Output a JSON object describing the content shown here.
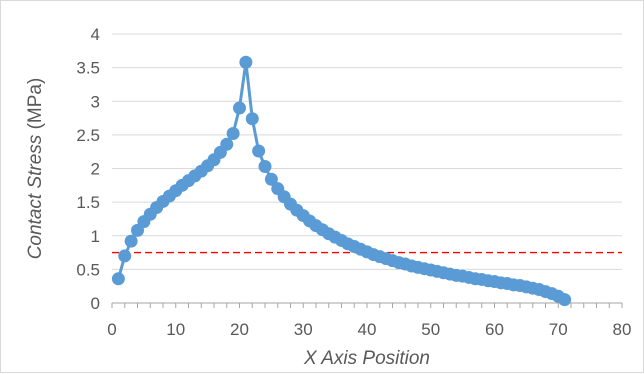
{
  "chart_data": {
    "type": "line",
    "title": "",
    "xlabel": "X Axis Position",
    "ylabel_italic": "Contact Stress",
    "ylabel_unit": " (MPa)",
    "xlim": [
      0,
      80
    ],
    "ylim": [
      0,
      4
    ],
    "x_ticks": [
      "0",
      "10",
      "20",
      "30",
      "40",
      "50",
      "60",
      "70",
      "80"
    ],
    "y_ticks": [
      "0",
      "0.5",
      "1",
      "1.5",
      "2",
      "2.5",
      "3",
      "3.5",
      "4"
    ],
    "grid": "horizontal",
    "legend": "none",
    "reference_line": {
      "y": 0.75,
      "style": "dashed",
      "color": "#ff0000"
    },
    "series": [
      {
        "color": "#5b9bd5",
        "marker": "circle",
        "x": [
          1,
          2,
          3,
          4,
          5,
          6,
          7,
          8,
          9,
          10,
          11,
          12,
          13,
          14,
          15,
          16,
          17,
          18,
          19,
          20,
          21,
          22,
          23,
          24,
          25,
          26,
          27,
          28,
          29,
          30,
          31,
          32,
          33,
          34,
          35,
          36,
          37,
          38,
          39,
          40,
          41,
          42,
          43,
          44,
          45,
          46,
          47,
          48,
          49,
          50,
          51,
          52,
          53,
          54,
          55,
          56,
          57,
          58,
          59,
          60,
          61,
          62,
          63,
          64,
          65,
          66,
          67,
          68,
          69,
          70,
          71
        ],
        "y": [
          0.36,
          0.7,
          0.92,
          1.08,
          1.21,
          1.32,
          1.42,
          1.51,
          1.59,
          1.67,
          1.75,
          1.82,
          1.89,
          1.96,
          2.04,
          2.13,
          2.24,
          2.36,
          2.52,
          2.9,
          3.58,
          2.74,
          2.26,
          2.03,
          1.84,
          1.7,
          1.58,
          1.47,
          1.38,
          1.3,
          1.22,
          1.15,
          1.09,
          1.03,
          0.98,
          0.93,
          0.88,
          0.84,
          0.8,
          0.76,
          0.72,
          0.69,
          0.66,
          0.63,
          0.6,
          0.58,
          0.55,
          0.53,
          0.51,
          0.49,
          0.47,
          0.45,
          0.43,
          0.41,
          0.4,
          0.38,
          0.36,
          0.35,
          0.33,
          0.32,
          0.3,
          0.29,
          0.27,
          0.26,
          0.24,
          0.22,
          0.2,
          0.17,
          0.14,
          0.1,
          0.05
        ]
      }
    ]
  }
}
